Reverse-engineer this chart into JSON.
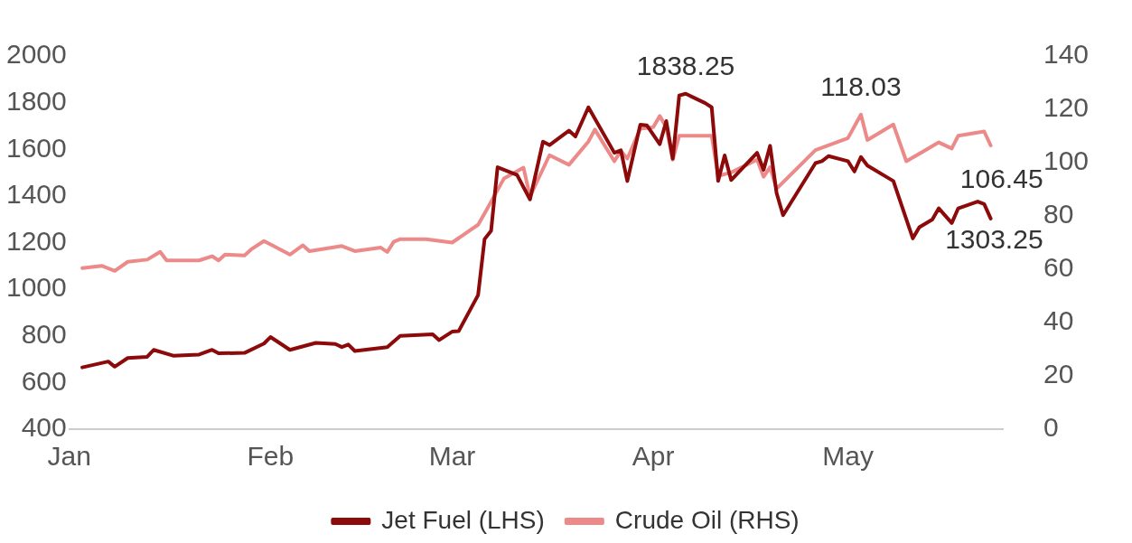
{
  "chart_data": {
    "type": "line",
    "marker": "none",
    "legend": "bottom",
    "xlim": [
      "--01-01",
      "--05-25"
    ],
    "xticks": [
      {
        "value": "--01-01",
        "label": "Jan"
      },
      {
        "value": "--02-01",
        "label": "Feb"
      },
      {
        "value": "--03-01",
        "label": "Mar"
      },
      {
        "value": "--04-01",
        "label": "Apr"
      },
      {
        "value": "--05-01",
        "label": "May"
      }
    ],
    "ylim": [
      400,
      2000
    ],
    "yticks": [
      400,
      600,
      800,
      1000,
      1200,
      1400,
      1600,
      1800,
      2000
    ],
    "y2lim": [
      0,
      140
    ],
    "y2ticks": [
      0,
      20,
      40,
      60,
      80,
      100,
      120,
      140
    ],
    "series": [
      {
        "name": "Jet Fuel (LHS)",
        "color": "#8c0a0a",
        "x": [
          "--01-03",
          "--01-07",
          "--01-08",
          "--01-10",
          "--01-13",
          "--01-14",
          "--01-17",
          "--01-21",
          "--01-23",
          "--01-24",
          "--01-28",
          "--01-31",
          "--02-01",
          "--02-04",
          "--02-08",
          "--02-11",
          "--02-12",
          "--02-13",
          "--02-14",
          "--02-19",
          "--02-21",
          "--02-26",
          "--02-27",
          "--03-01",
          "--03-02",
          "--03-05",
          "--03-06",
          "--03-07",
          "--03-08",
          "--03-11",
          "--03-13",
          "--03-15",
          "--03-16",
          "--03-19",
          "--03-20",
          "--03-22",
          "--03-26",
          "--03-27",
          "--03-28",
          "--03-30",
          "--03-31",
          "--04-02",
          "--04-03",
          "--04-04",
          "--04-05",
          "--04-06",
          "--04-09",
          "--04-10",
          "--04-11",
          "--04-12",
          "--04-13",
          "--04-17",
          "--04-18",
          "--04-19",
          "--04-20",
          "--04-21",
          "--04-26",
          "--04-27",
          "--04-28",
          "--05-01",
          "--05-02",
          "--05-03",
          "--05-04",
          "--05-08",
          "--05-11",
          "--05-12",
          "--05-14",
          "--05-15",
          "--05-17",
          "--05-18",
          "--05-21",
          "--05-22",
          "--05-23"
        ],
        "values": [
          665,
          690,
          668,
          705,
          710,
          740,
          715,
          720,
          740,
          725,
          727,
          767,
          795,
          740,
          770,
          765,
          752,
          763,
          735,
          752,
          800,
          807,
          782,
          818,
          820,
          975,
          1215,
          1250,
          1523,
          1490,
          1385,
          1633,
          1618,
          1680,
          1655,
          1780,
          1585,
          1596,
          1464,
          1706,
          1703,
          1622,
          1721,
          1560,
          1831,
          1838.25,
          1798,
          1780,
          1464,
          1574,
          1468,
          1585,
          1512,
          1615,
          1413,
          1317,
          1541,
          1549,
          1571,
          1549,
          1505,
          1567,
          1530,
          1464,
          1218,
          1266,
          1299,
          1347,
          1284,
          1347,
          1376,
          1365,
          1303.25
        ],
        "value_labels": [
          null,
          null,
          null,
          null,
          null,
          null,
          null,
          null,
          null,
          null,
          null,
          null,
          null,
          null,
          null,
          null,
          null,
          null,
          null,
          null,
          null,
          null,
          null,
          null,
          null,
          null,
          null,
          null,
          null,
          null,
          null,
          null,
          null,
          null,
          null,
          null,
          null,
          null,
          null,
          null,
          null,
          null,
          null,
          null,
          null,
          "1838.25",
          null,
          null,
          null,
          null,
          null,
          null,
          null,
          null,
          null,
          null,
          null,
          null,
          null,
          null,
          null,
          null,
          null,
          null,
          null,
          null,
          null,
          null,
          null,
          null,
          null,
          null,
          "1303.25"
        ]
      },
      {
        "name": "Crude Oil (RHS)",
        "color": "#ec8a8a",
        "axis": "y2",
        "x": [
          "--01-03",
          "--01-06",
          "--01-08",
          "--01-10",
          "--01-13",
          "--01-15",
          "--01-16",
          "--01-21",
          "--01-23",
          "--01-24",
          "--01-25",
          "--01-28",
          "--01-29",
          "--01-31",
          "--02-04",
          "--02-06",
          "--02-07",
          "--02-12",
          "--02-14",
          "--02-18",
          "--02-19",
          "--02-20",
          "--02-21",
          "--02-25",
          "--03-01",
          "--03-05",
          "--03-06",
          "--03-09",
          "--03-12",
          "--03-13",
          "--03-16",
          "--03-19",
          "--03-22",
          "--03-23",
          "--03-26",
          "--03-27",
          "--03-28",
          "--03-30",
          "--04-01",
          "--04-02",
          "--04-03",
          "--04-04",
          "--04-05",
          "--04-10",
          "--04-11",
          "--04-13",
          "--04-17",
          "--04-18",
          "--04-19",
          "--04-20",
          "--04-26",
          "--05-01",
          "--05-03",
          "--05-04",
          "--05-08",
          "--05-10",
          "--05-15",
          "--05-17",
          "--05-18",
          "--05-22",
          "--05-23"
        ],
        "values": [
          60.4,
          61.3,
          59.4,
          62.8,
          63.6,
          66.5,
          63.3,
          63.3,
          64.9,
          63.3,
          65.5,
          65.2,
          67.4,
          70.6,
          65.5,
          69.0,
          66.8,
          68.7,
          66.8,
          68.1,
          66.5,
          70.3,
          71.3,
          71.3,
          70.0,
          76.7,
          80.9,
          94.1,
          98.1,
          87.3,
          102.8,
          99.2,
          107.9,
          112.4,
          100.5,
          104.4,
          101.5,
          112.7,
          113.3,
          117.5,
          113.3,
          101.1,
          110.1,
          110.1,
          95.0,
          96.3,
          101.1,
          94.7,
          98.3,
          90.2,
          104.7,
          109.2,
          118.03,
          108.5,
          114.3,
          100.5,
          107.6,
          105.3,
          110.1,
          111.7,
          106.45
        ],
        "value_labels": [
          null,
          null,
          null,
          null,
          null,
          null,
          null,
          null,
          null,
          null,
          null,
          null,
          null,
          null,
          null,
          null,
          null,
          null,
          null,
          null,
          null,
          null,
          null,
          null,
          null,
          null,
          null,
          null,
          null,
          null,
          null,
          null,
          null,
          null,
          null,
          null,
          null,
          null,
          null,
          null,
          null,
          null,
          null,
          null,
          null,
          null,
          null,
          null,
          null,
          null,
          null,
          null,
          "118.03",
          null,
          null,
          null,
          null,
          null,
          null,
          null,
          "106.45"
        ]
      }
    ]
  }
}
